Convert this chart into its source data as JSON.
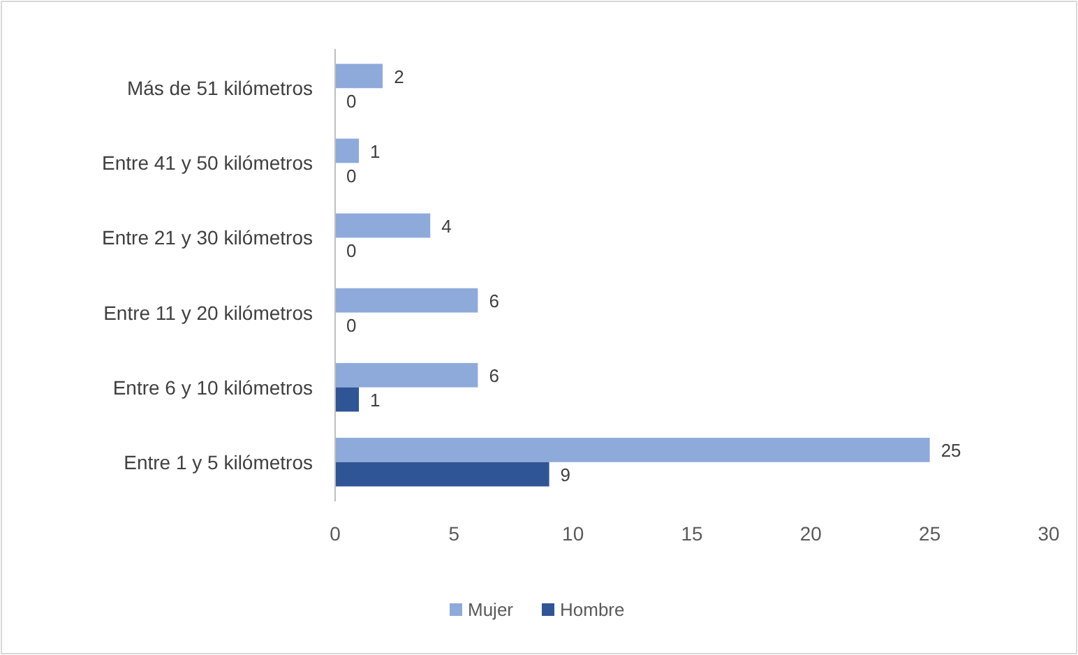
{
  "chart_data": {
    "type": "bar",
    "orientation": "horizontal",
    "categories": [
      "Más de 51 kilómetros",
      "Entre 41 y 50 kilómetros",
      "Entre 21 y 30 kilómetros",
      "Entre 11 y 20 kilómetros",
      "Entre 6 y 10 kilómetros",
      "Entre 1 y 5 kilómetros"
    ],
    "series": [
      {
        "name": "Mujer",
        "color": "#8eaadb",
        "values": [
          2,
          1,
          4,
          6,
          6,
          25
        ]
      },
      {
        "name": "Hombre",
        "color": "#2f5597",
        "values": [
          0,
          0,
          0,
          0,
          1,
          9
        ]
      }
    ],
    "xlim": [
      0,
      30
    ],
    "xticks": [
      0,
      5,
      10,
      15,
      20,
      25,
      30
    ],
    "data_labels": true,
    "legend": "bottom",
    "grid": false
  }
}
